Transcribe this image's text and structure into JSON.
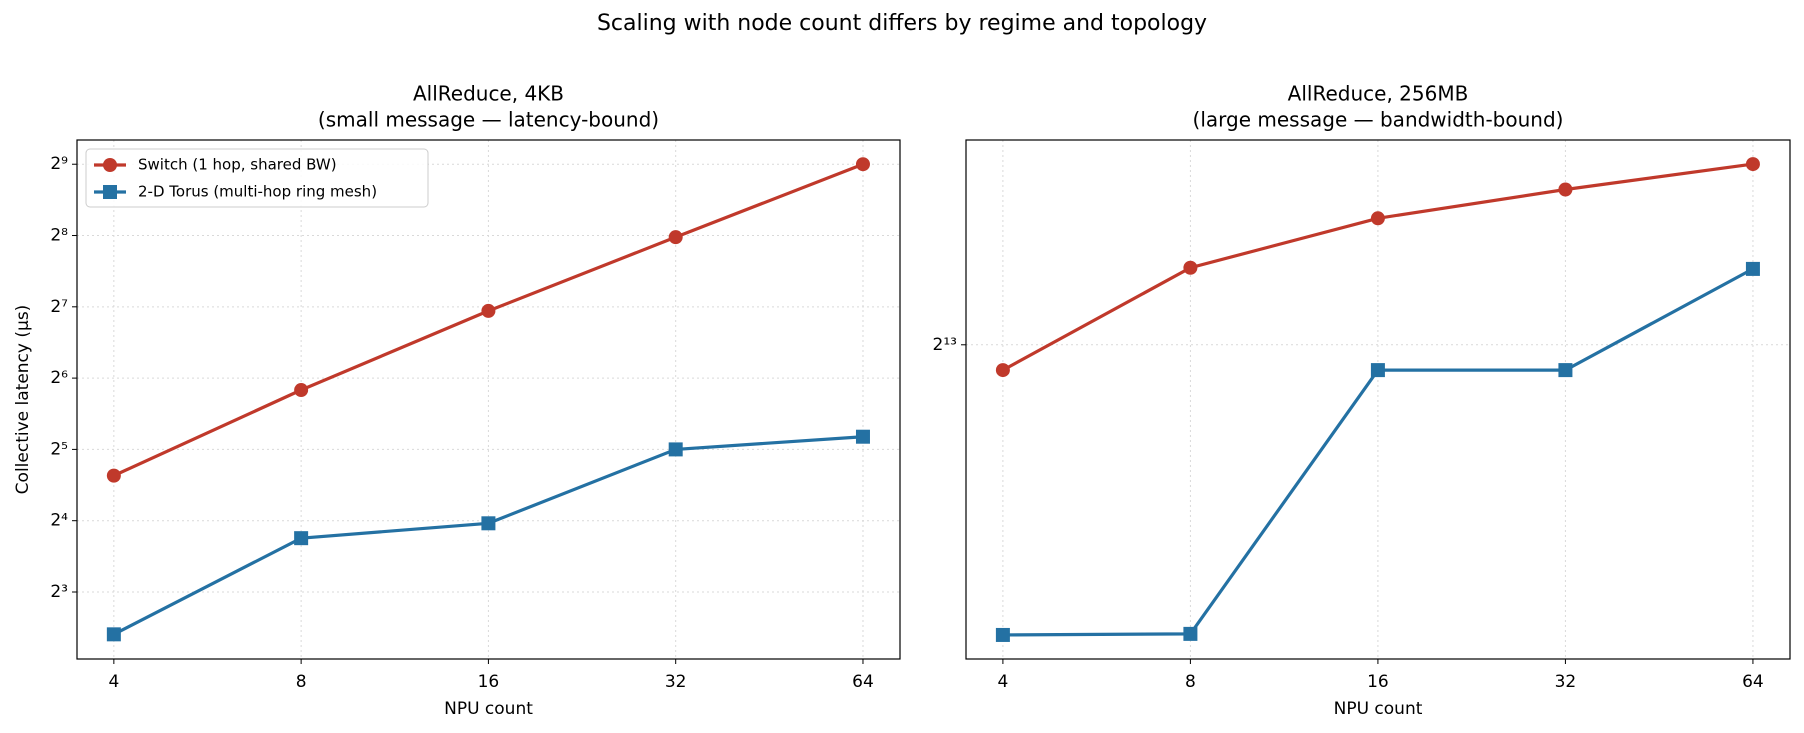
{
  "title": "Scaling with node count differs by regime and topology",
  "chart_data": [
    {
      "type": "line",
      "title": "AllReduce, 4KB",
      "subtitle": "(small message — latency-bound)",
      "xlabel": "NPU count",
      "ylabel": "Collective latency (µs)",
      "x": [
        4,
        8,
        16,
        32,
        64
      ],
      "xlim": [
        3.49,
        73.4
      ],
      "xticks": [
        4,
        8,
        16,
        32,
        64
      ],
      "xscale": "log",
      "ylim": [
        4.17,
        648
      ],
      "yscale": "log",
      "yticks": [
        {
          "value": 8,
          "label": "2³"
        },
        {
          "value": 16,
          "label": "2⁴"
        },
        {
          "value": 32,
          "label": "2⁵"
        },
        {
          "value": 64,
          "label": "2⁶"
        },
        {
          "value": 128,
          "label": "2⁷"
        },
        {
          "value": 256,
          "label": "2⁸"
        },
        {
          "value": 512,
          "label": "2⁹"
        }
      ],
      "grid": true,
      "legend": "upper left",
      "series": [
        {
          "name": "Switch (1 hop, shared BW)",
          "color": "#c0392b",
          "marker": "o",
          "values": [
            24.8,
            57,
            123,
            252,
            512
          ]
        },
        {
          "name": "2-D Torus (multi-hop ring mesh)",
          "color": "#2471a3",
          "marker": "s",
          "values": [
            5.3,
            13.5,
            15.6,
            32,
            36.2
          ]
        }
      ]
    },
    {
      "type": "line",
      "title": "AllReduce, 256MB",
      "subtitle": "(large message — bandwidth-bound)",
      "xlabel": "NPU count",
      "x": [
        4,
        8,
        16,
        32,
        64
      ],
      "xlim": [
        3.49,
        73.4
      ],
      "xticks": [
        4,
        8,
        16,
        32,
        64
      ],
      "xscale": "log",
      "ylim": [
        5379,
        10776
      ],
      "yscale": "log",
      "yticks": [
        {
          "value": 8192,
          "label": "2¹³"
        }
      ],
      "grid": true,
      "series": [
        {
          "color": "#c0392b",
          "marker": "o",
          "values": [
            7919,
            9082,
            9704,
            10085,
            10434
          ]
        },
        {
          "color": "#2471a3",
          "marker": "s",
          "values": [
            5555,
            5563,
            7919,
            7919,
            9068
          ]
        }
      ]
    }
  ]
}
